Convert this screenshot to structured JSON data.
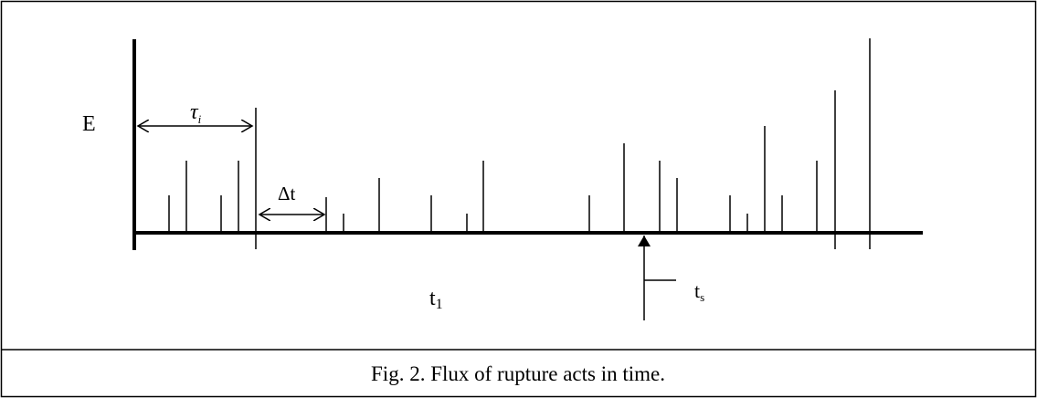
{
  "labels": {
    "energy": "E",
    "interval": {
      "symbol": "τ",
      "sub": "i"
    },
    "step": "Δt",
    "time1": {
      "symbol": "t",
      "sub": "1"
    },
    "time_s": {
      "symbol": "t",
      "sub": "s"
    }
  },
  "caption": "Fig. 2. Flux of rupture acts in time."
}
